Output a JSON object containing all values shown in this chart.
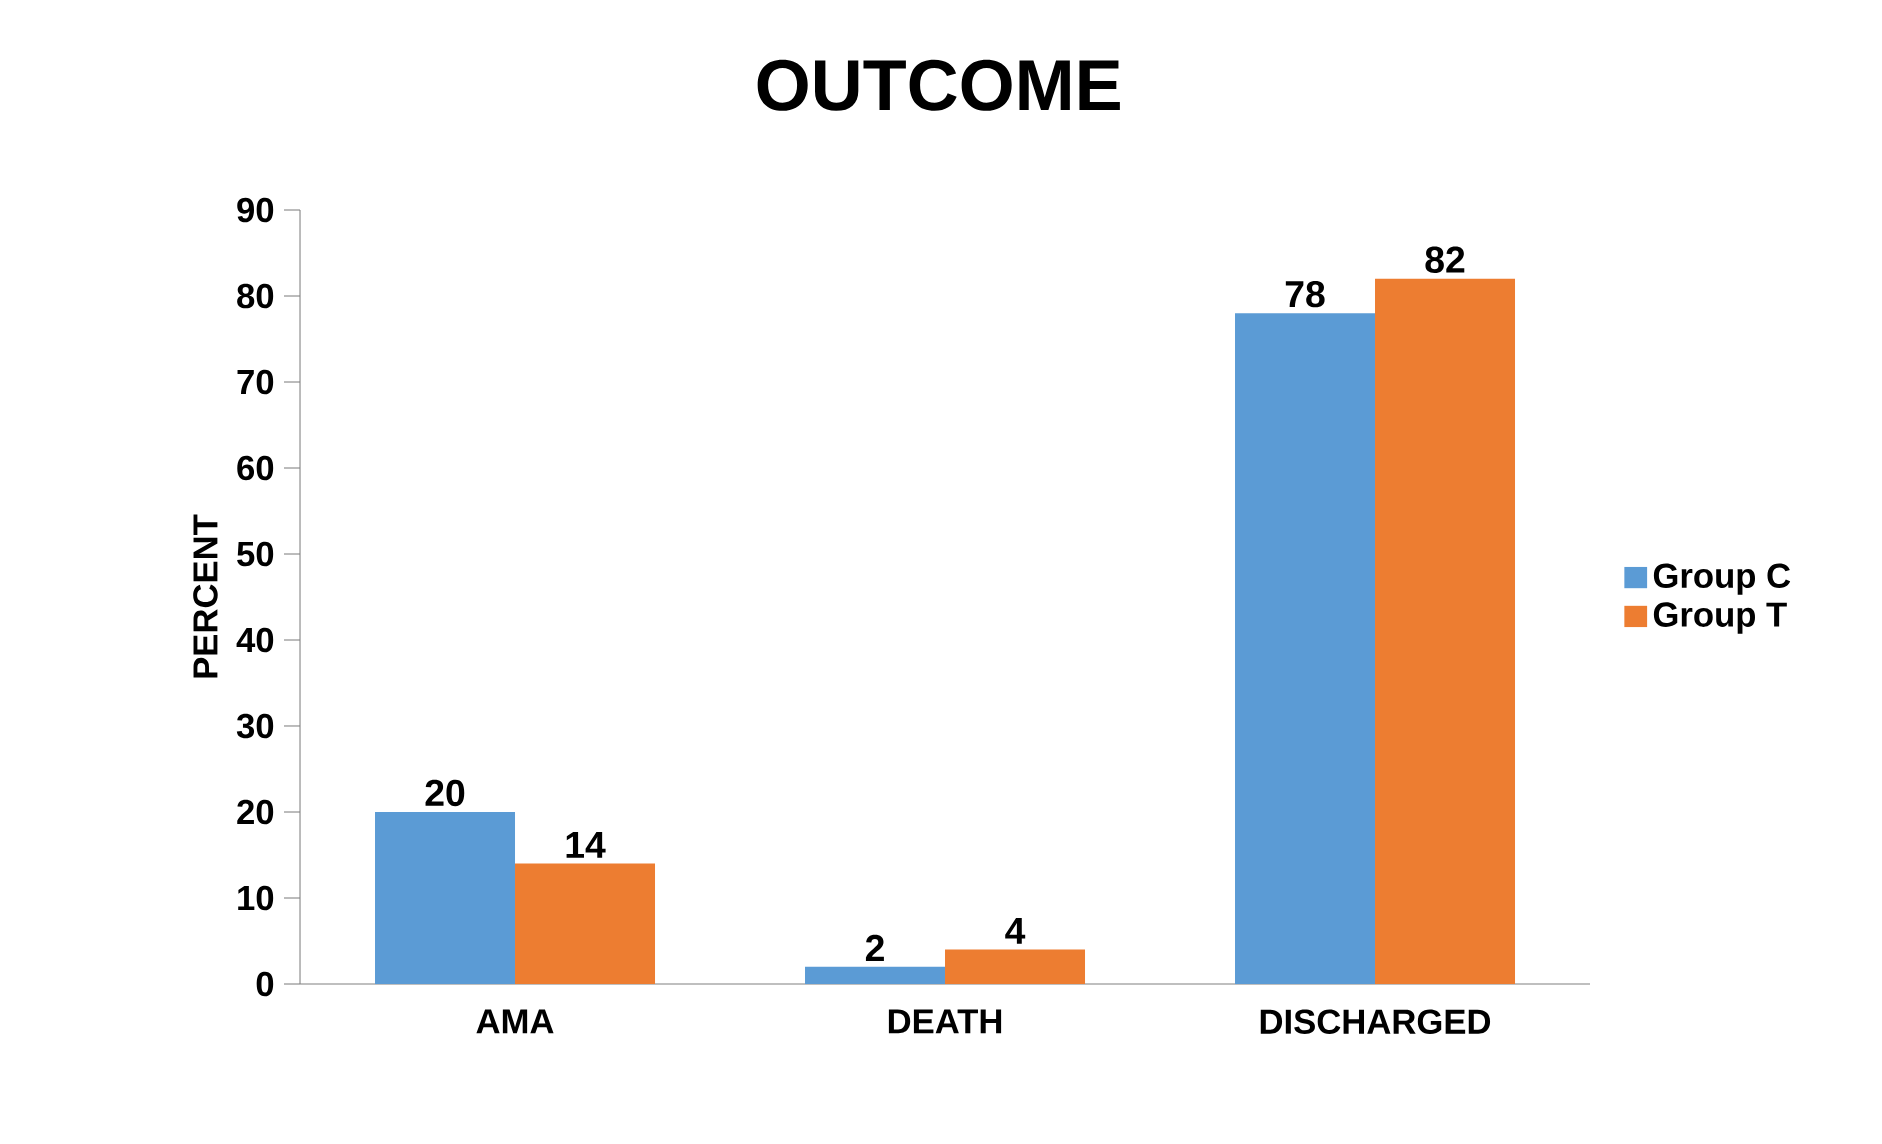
{
  "chart_data": {
    "type": "bar",
    "title": "OUTCOME",
    "ylabel": "PERCENT",
    "categories": [
      "AMA",
      "DEATH",
      "DISCHARGED"
    ],
    "series": [
      {
        "name": "Group C",
        "color": "#5b9bd5",
        "values": [
          20,
          2,
          78
        ]
      },
      {
        "name": "Group T",
        "color": "#ed7d31",
        "values": [
          14,
          4,
          82
        ]
      }
    ],
    "ylim": [
      0,
      90
    ],
    "yticks": [
      0,
      10,
      20,
      30,
      40,
      50,
      60,
      70,
      80,
      90
    ],
    "data_labels": true,
    "legend": "right",
    "grid": false
  }
}
